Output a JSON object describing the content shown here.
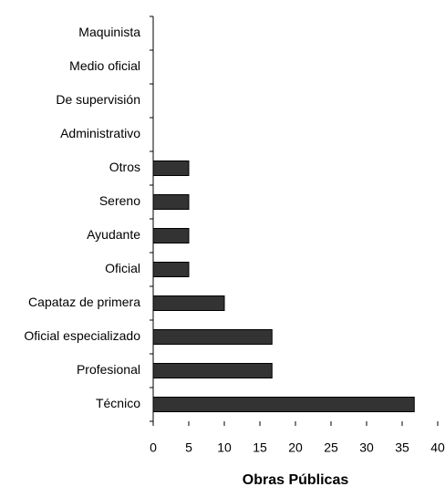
{
  "chart_data": {
    "type": "bar",
    "orientation": "horizontal",
    "categories": [
      "Maquinista",
      "Medio oficial",
      "De supervisión",
      "Administrativo",
      "Otros",
      "Sereno",
      "Ayudante",
      "Oficial",
      "Capataz de primera",
      "Oficial especializado",
      "Profesional",
      "Técnico"
    ],
    "values": [
      0,
      0,
      0,
      0,
      5,
      5,
      5,
      5,
      10,
      16.7,
      16.7,
      36.7
    ],
    "color": "#333333",
    "xlim": [
      0,
      40
    ],
    "xticks": [
      0,
      5,
      10,
      15,
      20,
      25,
      30,
      35,
      40
    ],
    "xlabel": "Obras Públicas",
    "grid": false
  }
}
